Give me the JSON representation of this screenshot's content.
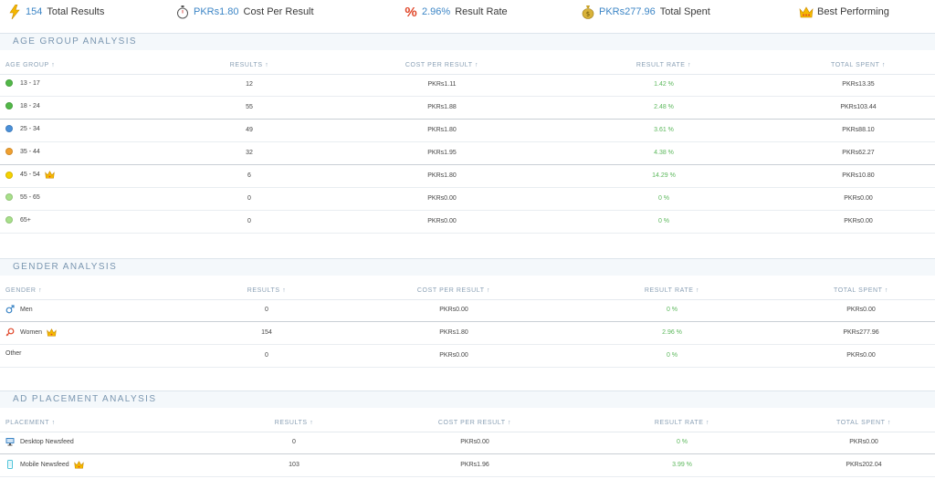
{
  "summary": {
    "total_results": {
      "value": "154",
      "label": "Total Results",
      "icon": "lightning-icon"
    },
    "cost_per_result": {
      "value": "PKRs1.80",
      "label": "Cost Per Result",
      "icon": "stopwatch-icon"
    },
    "result_rate": {
      "value": "2.96%",
      "label": "Result Rate",
      "icon": "percent-icon"
    },
    "total_spent": {
      "value": "PKRs277.96",
      "label": "Total Spent",
      "icon": "money-bag-icon"
    },
    "best_performing": {
      "label": "Best Performing",
      "icon": "crown-icon"
    }
  },
  "age": {
    "title": "AGE GROUP ANALYSIS",
    "headers": [
      "AGE GROUP ↑",
      "RESULTS ↑",
      "COST PER RESULT ↑",
      "RESULT RATE ↑",
      "TOTAL SPENT ↑"
    ],
    "rows": [
      {
        "label": "13 - 17",
        "results": "12",
        "cost": "PKRs1.11",
        "rate": "1.42 %",
        "spent": "PKRs13.35",
        "color": "#52b848",
        "best": false
      },
      {
        "label": "18 - 24",
        "results": "55",
        "cost": "PKRs1.88",
        "rate": "2.48 %",
        "spent": "PKRs103.44",
        "color": "#52b848",
        "best": false
      },
      {
        "label": "25 - 34",
        "results": "49",
        "cost": "PKRs1.80",
        "rate": "3.61 %",
        "spent": "PKRs88.10",
        "color": "#4a90d9",
        "best": false
      },
      {
        "label": "35 - 44",
        "results": "32",
        "cost": "PKRs1.95",
        "rate": "4.38 %",
        "spent": "PKRs62.27",
        "color": "#f0a030",
        "best": false
      },
      {
        "label": "45 - 54",
        "results": "6",
        "cost": "PKRs1.80",
        "rate": "14.29 %",
        "spent": "PKRs10.80",
        "color": "#f5d200",
        "best": true
      },
      {
        "label": "55 - 65",
        "results": "0",
        "cost": "PKRs0.00",
        "rate": "0 %",
        "spent": "PKRs0.00",
        "color": "#a8e08a",
        "best": false
      },
      {
        "label": "65+",
        "results": "0",
        "cost": "PKRs0.00",
        "rate": "0 %",
        "spent": "PKRs0.00",
        "color": "#a8e08a",
        "best": false
      }
    ]
  },
  "gender": {
    "title": "GENDER ANALYSIS",
    "headers": [
      "GENDER ↑",
      "RESULTS ↑",
      "COST PER RESULT ↑",
      "RESULT RATE ↑",
      "TOTAL SPENT ↑"
    ],
    "rows": [
      {
        "label": "Men",
        "results": "0",
        "cost": "PKRs0.00",
        "rate": "0 %",
        "spent": "PKRs0.00",
        "icon": "male-symbol-icon",
        "best": false
      },
      {
        "label": "Women",
        "results": "154",
        "cost": "PKRs1.80",
        "rate": "2.96 %",
        "spent": "PKRs277.96",
        "icon": "female-symbol-icon",
        "best": true
      },
      {
        "label": "Other",
        "results": "0",
        "cost": "PKRs0.00",
        "rate": "0 %",
        "spent": "PKRs0.00",
        "icon": "",
        "best": false
      }
    ]
  },
  "placement": {
    "title": "AD PLACEMENT ANALYSIS",
    "headers": [
      "PLACEMENT ↑",
      "RESULTS ↑",
      "COST PER RESULT ↑",
      "RESULT RATE ↑",
      "TOTAL SPENT ↑"
    ],
    "rows": [
      {
        "label": "Desktop Newsfeed",
        "results": "0",
        "cost": "PKRs0.00",
        "rate": "0 %",
        "spent": "PKRs0.00",
        "icon": "desktop-icon",
        "best": false
      },
      {
        "label": "Mobile Newsfeed",
        "results": "103",
        "cost": "PKRs1.96",
        "rate": "3.99 %",
        "spent": "PKRs202.04",
        "icon": "mobile-phone-icon",
        "best": true
      }
    ]
  },
  "colors": {
    "accent": "#3d86c6",
    "rate_green": "#5cb85c",
    "section_bg": "#f4f8fb",
    "header_text": "#8aa0b5"
  }
}
